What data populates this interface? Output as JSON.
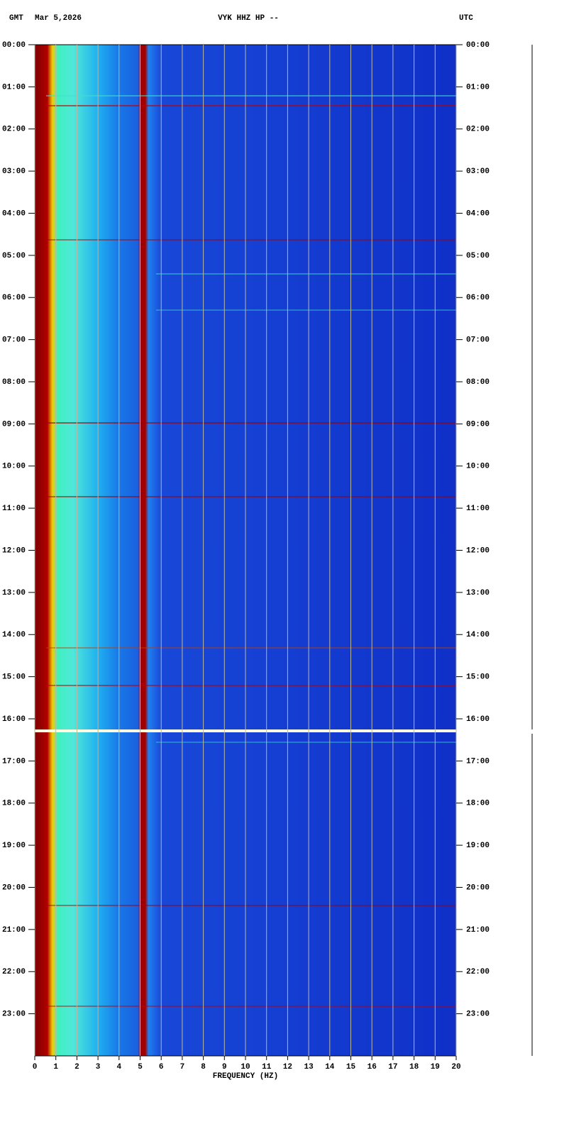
{
  "chart_data": {
    "type": "spectrogram",
    "title": "VYK HHZ HP --",
    "time_zone_left": "GMT",
    "date": "Mar 5,2026",
    "time_zone_right": "UTC",
    "x_label": "FREQUENCY (HZ)",
    "xlim": [
      0,
      20
    ],
    "xticks": [
      0,
      1,
      2,
      3,
      4,
      5,
      6,
      7,
      8,
      9,
      10,
      11,
      12,
      13,
      14,
      15,
      16,
      17,
      18,
      19,
      20
    ],
    "ylim": [
      0,
      24
    ],
    "yticks": [
      {
        "value": 0,
        "label": "00:00"
      },
      {
        "value": 1,
        "label": "01:00"
      },
      {
        "value": 2,
        "label": "02:00"
      },
      {
        "value": 3,
        "label": "03:00"
      },
      {
        "value": 4,
        "label": "04:00"
      },
      {
        "value": 5,
        "label": "05:00"
      },
      {
        "value": 6,
        "label": "06:00"
      },
      {
        "value": 7,
        "label": "07:00"
      },
      {
        "value": 8,
        "label": "08:00"
      },
      {
        "value": 9,
        "label": "09:00"
      },
      {
        "value": 10,
        "label": "10:00"
      },
      {
        "value": 11,
        "label": "11:00"
      },
      {
        "value": 12,
        "label": "12:00"
      },
      {
        "value": 13,
        "label": "13:00"
      },
      {
        "value": 14,
        "label": "14:00"
      },
      {
        "value": 15,
        "label": "15:00"
      },
      {
        "value": 16,
        "label": "16:00"
      },
      {
        "value": 17,
        "label": "17:00"
      },
      {
        "value": 18,
        "label": "18:00"
      },
      {
        "value": 19,
        "label": "19:00"
      },
      {
        "value": 20,
        "label": "20:00"
      },
      {
        "value": 21,
        "label": "21:00"
      },
      {
        "value": 22,
        "label": "22:00"
      },
      {
        "value": 23,
        "label": "23:00"
      }
    ],
    "grid": true
  }
}
